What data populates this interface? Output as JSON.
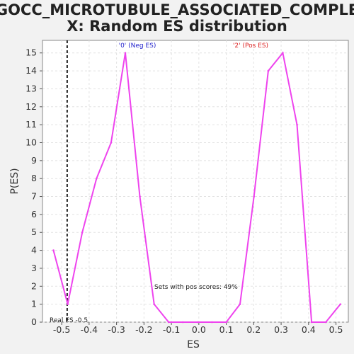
{
  "chart_data": {
    "type": "line",
    "title_line1": "GOCC_MICROTUBULE_ASSOCIATED_COMPLE",
    "title_line2": "X: Random ES distribution",
    "xlabel": "ES",
    "ylabel": "P(ES)",
    "xlim": [
      -0.57,
      0.545
    ],
    "ylim": [
      0,
      15.7
    ],
    "x_ticks": [
      -0.5,
      -0.4,
      -0.3,
      -0.2,
      -0.1,
      0.0,
      0.1,
      0.2,
      0.3,
      0.4,
      0.5
    ],
    "x_tick_labels": [
      "-0.5",
      "-0.4",
      "-0.3",
      "-0.2",
      "-0.1",
      "0.0",
      "0.1",
      "0.2",
      "0.3",
      "0.4",
      "0.5"
    ],
    "y_ticks": [
      0,
      1,
      2,
      3,
      4,
      5,
      6,
      7,
      8,
      9,
      10,
      11,
      12,
      13,
      14,
      15
    ],
    "y_tick_labels": [
      "0",
      "1",
      "2",
      "3",
      "4",
      "5",
      "6",
      "7",
      "8",
      "9",
      "10",
      "11",
      "12",
      "13",
      "14",
      "15"
    ],
    "grid": true,
    "series": [
      {
        "color": "#ee44ee",
        "x": [
          -0.53,
          -0.478,
          -0.425,
          -0.373,
          -0.32,
          -0.268,
          -0.215,
          -0.163,
          -0.11,
          -0.058,
          -0.005,
          0.048,
          0.1,
          0.15,
          0.201,
          0.253,
          0.306,
          0.358,
          0.411,
          0.463,
          0.516
        ],
        "y": [
          4,
          1,
          5,
          8,
          10,
          15,
          7,
          1,
          0,
          0,
          0,
          0,
          0,
          1,
          7,
          14,
          15,
          11,
          0,
          0,
          1
        ]
      }
    ],
    "real_es": -0.48,
    "real_es_label": "Real ES -0.5",
    "neg_label": "'0' (Neg ES)",
    "pos_label": "'2' (Pos ES)",
    "pos_scores_text": "Sets with pos scores: 49%",
    "colors": {
      "line": "#ee44ee",
      "neg": "#2222cc",
      "pos": "#dd2222",
      "realline": "#222222"
    }
  }
}
